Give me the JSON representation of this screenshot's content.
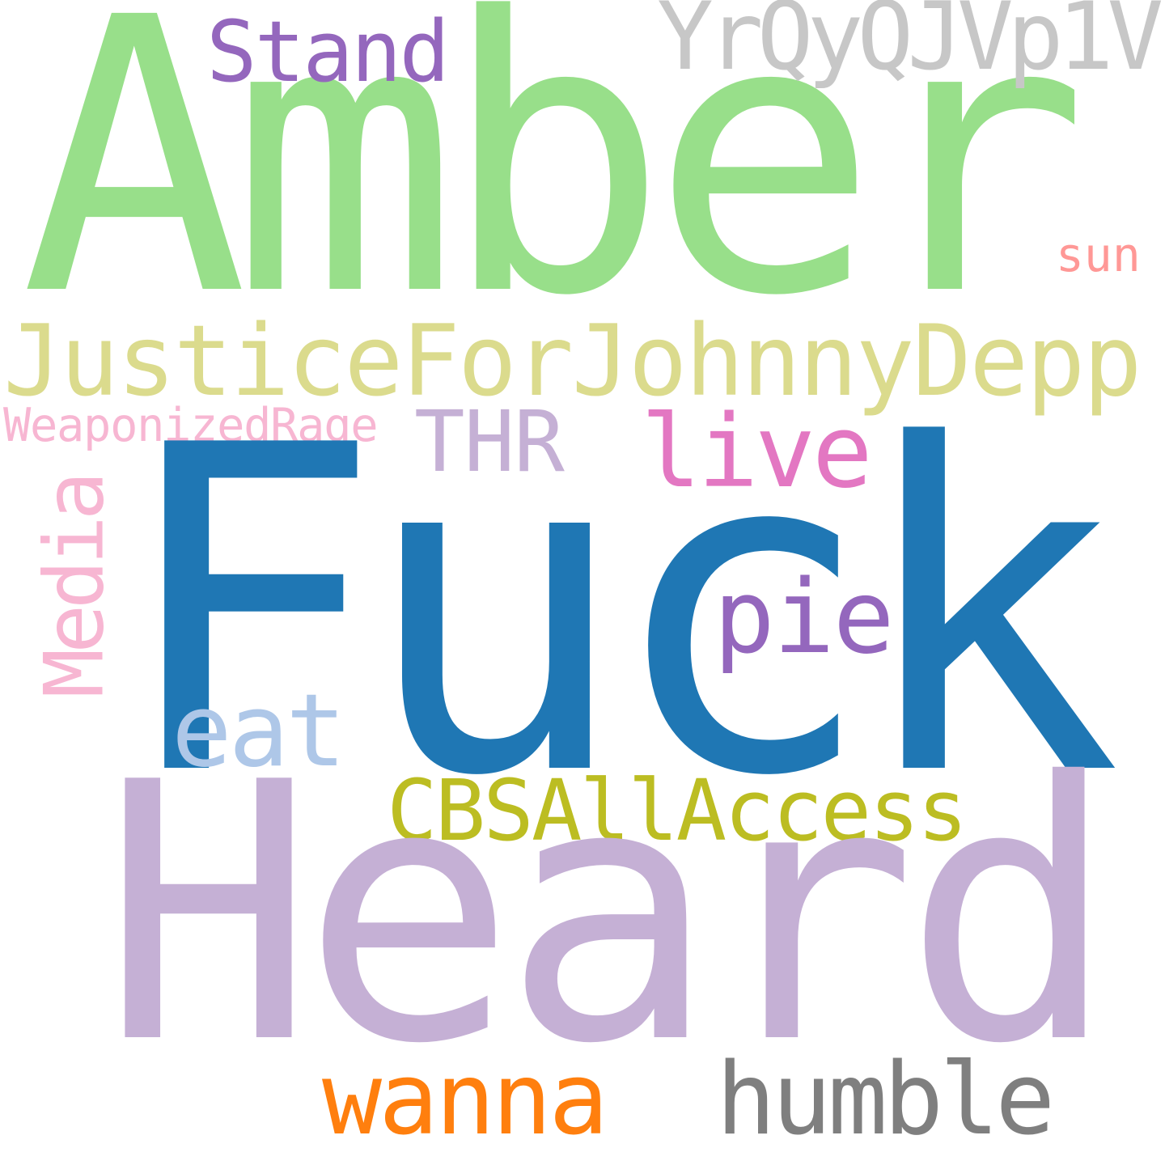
{
  "words": {
    "amber": {
      "text": "Amber",
      "color": "#98df8a"
    },
    "fuck": {
      "text": "Fuck",
      "color": "#1f77b4"
    },
    "heard": {
      "text": "Heard",
      "color": "#c5b0d5"
    },
    "justice": {
      "text": "JusticeForJohnnyDepp",
      "color": "#dbdb8d"
    },
    "yrq": {
      "text": "YrQyQJVp1V",
      "color": "#c7c7c7"
    },
    "stand": {
      "text": "Stand",
      "color": "#9467bd"
    },
    "sun": {
      "text": "sun",
      "color": "#ff9896"
    },
    "weaponized": {
      "text": "WeaponizedRage",
      "color": "#f7b6d2"
    },
    "thr": {
      "text": "THR",
      "color": "#c5b0d5"
    },
    "live": {
      "text": "live",
      "color": "#e377c2"
    },
    "media": {
      "text": "Media",
      "color": "#f7b6d2"
    },
    "pie": {
      "text": "pie",
      "color": "#9467bd"
    },
    "eat": {
      "text": "eat",
      "color": "#aec7e8"
    },
    "cbs": {
      "text": "CBSAllAccess",
      "color": "#bcbd22"
    },
    "wanna": {
      "text": "wanna",
      "color": "#ff7f0e"
    },
    "humble": {
      "text": "humble",
      "color": "#7f7f7f"
    }
  }
}
